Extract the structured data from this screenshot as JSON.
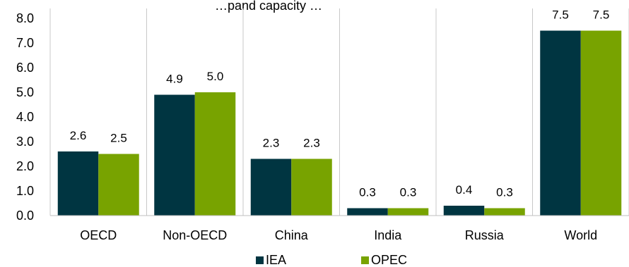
{
  "chart_data": {
    "type": "bar",
    "title": "…pand capacity …",
    "categories": [
      "OECD",
      "Non-OECD",
      "China",
      "India",
      "Russia",
      "World"
    ],
    "series": [
      {
        "name": "IEA",
        "values": [
          2.6,
          4.9,
          2.3,
          0.3,
          0.4,
          7.5
        ],
        "labels": [
          "2.6",
          "4.9",
          "2.3",
          "0.3",
          "0.4",
          "7.5"
        ],
        "color": "#003541"
      },
      {
        "name": "OPEC",
        "values": [
          2.5,
          5.0,
          2.3,
          0.3,
          0.3,
          7.5
        ],
        "labels": [
          "2.5",
          "5.0",
          "2.3",
          "0.3",
          "0.3",
          "7.5"
        ],
        "color": "#78A300"
      }
    ],
    "ylim": [
      0,
      8
    ],
    "yticks": [
      "0.0",
      "1.0",
      "2.0",
      "3.0",
      "4.0",
      "5.0",
      "6.0",
      "7.0",
      "8.0"
    ],
    "grid": "vertical category separators",
    "legend": "bottom-center",
    "xlabel": "",
    "ylabel": ""
  }
}
